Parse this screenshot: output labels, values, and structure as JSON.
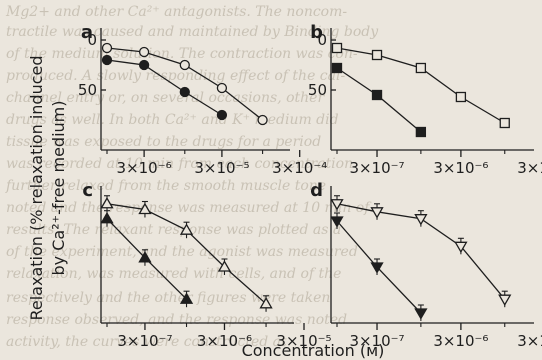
{
  "figure": {
    "ylabel_line1": "Relaxation (% relaxation induced",
    "ylabel_line2": "by Ca²⁺-free medium)",
    "xlabel": "Concentration (м)"
  },
  "colors": {
    "ink": "#1e1e1e",
    "paper": "#ebe6dd"
  },
  "chart_data": [
    {
      "panel": "a",
      "type": "line",
      "xscale": "log",
      "xlim": [
        1e-06,
        0.0002
      ],
      "ylim": [
        0,
        100
      ],
      "y_inverted": true,
      "xticks": [
        3e-06,
        3e-05,
        0.0003
      ],
      "xtick_labels": [
        "3×10⁻⁶",
        "3×10⁻⁵",
        "3×10⁻⁴"
      ],
      "yticks": [
        0,
        50
      ],
      "ytick_labels": [
        "0",
        "50"
      ],
      "series": [
        {
          "marker": "circle-open",
          "error": false,
          "x": [
            1e-06,
            3e-06,
            1e-05,
            3e-05,
            0.0001
          ],
          "y": [
            8,
            12,
            25,
            48,
            80
          ]
        },
        {
          "marker": "circle-filled",
          "error": false,
          "x": [
            1e-06,
            3e-06,
            1e-05,
            3e-05
          ],
          "y": [
            20,
            25,
            52,
            75
          ]
        }
      ]
    },
    {
      "panel": "b",
      "type": "line",
      "xscale": "log",
      "xlim": [
        1e-07,
        2e-05
      ],
      "ylim": [
        0,
        100
      ],
      "y_inverted": true,
      "xticks": [
        3e-07,
        3e-06,
        3e-05
      ],
      "xtick_labels": [
        "3×10⁻⁷",
        "3×10⁻⁶",
        "3×10⁻⁵"
      ],
      "yticks": [
        0,
        50
      ],
      "ytick_labels": [
        "0",
        "50"
      ],
      "series": [
        {
          "marker": "square-open",
          "error": false,
          "x": [
            1e-07,
            3e-07,
            1e-06,
            3e-06,
            1e-05
          ],
          "y": [
            8,
            15,
            28,
            57,
            83
          ]
        },
        {
          "marker": "square-filled",
          "error": false,
          "x": [
            1e-07,
            3e-07,
            1e-06
          ],
          "y": [
            28,
            55,
            92
          ]
        }
      ]
    },
    {
      "panel": "c",
      "type": "line",
      "xscale": "log",
      "xlim": [
        1e-07,
        2e-05
      ],
      "ylim": [
        0,
        100
      ],
      "y_inverted": true,
      "xticks": [
        3e-07,
        3e-06,
        3e-05
      ],
      "xtick_labels": [
        "3×10⁻⁷",
        "3×10⁻⁶",
        "3×10⁻⁵"
      ],
      "yticks": [],
      "ytick_labels": [],
      "series": [
        {
          "marker": "triangle-up-open",
          "error": true,
          "x": [
            1e-07,
            3e-07,
            1e-06,
            3e-06,
            1e-05
          ],
          "y": [
            5,
            10,
            28,
            60,
            92
          ]
        },
        {
          "marker": "triangle-up-filled",
          "error": true,
          "x": [
            1e-07,
            3e-07,
            1e-06
          ],
          "y": [
            18,
            52,
            88
          ]
        }
      ]
    },
    {
      "panel": "d",
      "type": "line",
      "xscale": "log",
      "xlim": [
        1e-07,
        2e-05
      ],
      "ylim": [
        0,
        100
      ],
      "y_inverted": true,
      "xticks": [
        3e-07,
        3e-06,
        3e-05
      ],
      "xtick_labels": [
        "3×10⁻⁷",
        "3×10⁻⁶",
        "3×10⁻⁵"
      ],
      "yticks": [],
      "ytick_labels": [],
      "series": [
        {
          "marker": "triangle-down-open",
          "error": true,
          "x": [
            1e-07,
            3e-07,
            1e-06,
            3e-06,
            1e-05
          ],
          "y": [
            5,
            12,
            18,
            42,
            88
          ]
        },
        {
          "marker": "triangle-down-filled",
          "error": true,
          "x": [
            1e-07,
            3e-07,
            1e-06
          ],
          "y": [
            20,
            60,
            100
          ]
        }
      ]
    }
  ]
}
